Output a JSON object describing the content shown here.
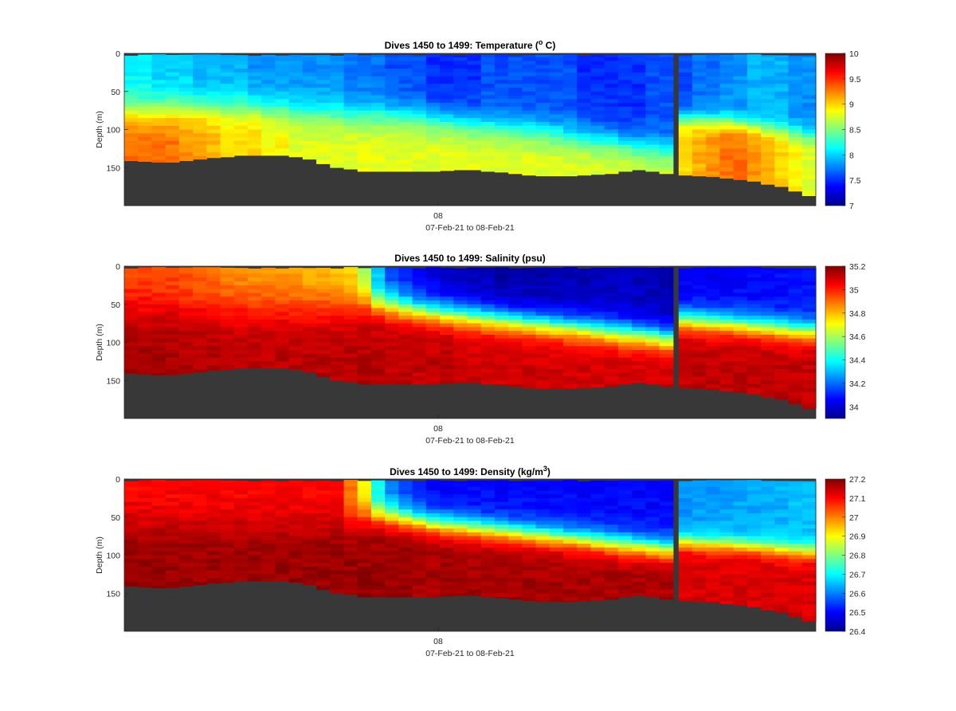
{
  "figure": {
    "background": "#ffffff",
    "bathymetry_color": "#383838"
  },
  "chart_data": [
    {
      "type": "heatmap",
      "title": "Dives 1450 to 1499: Temperature (",
      "title_sup": "o",
      "title_suffix": " C)",
      "ylabel": "Depth (m)",
      "xlabel": "07-Feb-21 to 08-Feb-21",
      "x_ticks": [
        "08"
      ],
      "y_ticks": [
        0,
        50,
        100,
        150
      ],
      "ylim": [
        0,
        200
      ],
      "y_reversed": true,
      "colormap": "jet",
      "clim": [
        7,
        10
      ],
      "colorbar_ticks": [
        "10",
        "9.5",
        "9",
        "8.5",
        "8",
        "7.5",
        "7"
      ],
      "colorbar_values": [
        10,
        9.5,
        9,
        8.5,
        8,
        7.5,
        7
      ],
      "dives": [
        1450,
        1499
      ],
      "bottom_depth_per_dive": [
        141,
        142,
        143,
        143,
        141,
        139,
        137,
        136,
        134,
        134,
        134,
        134,
        136,
        139,
        145,
        150,
        152,
        155,
        155,
        155,
        155,
        155,
        155,
        154,
        153,
        153,
        155,
        156,
        158,
        160,
        161,
        161,
        161,
        160,
        159,
        158,
        155,
        153,
        155,
        158,
        160,
        161,
        162,
        164,
        166,
        168,
        172,
        175,
        181,
        187
      ],
      "profile_mixed_depth": [
        25,
        24,
        22,
        22,
        20,
        18,
        14,
        12,
        10,
        9,
        8,
        8,
        8,
        7,
        6,
        6,
        5,
        5,
        4,
        4,
        3,
        3,
        2,
        2,
        2,
        2,
        2,
        2,
        2,
        2,
        2,
        2,
        2,
        2,
        2,
        2,
        2,
        2,
        2,
        2,
        2,
        2,
        2,
        2,
        2,
        2,
        2,
        2,
        2,
        2
      ],
      "profile_surface_value": [
        8.1,
        8.1,
        8.0,
        8.0,
        8.0,
        7.9,
        7.9,
        7.9,
        7.9,
        7.8,
        7.8,
        7.8,
        7.8,
        7.8,
        7.8,
        7.8,
        7.7,
        7.7,
        7.7,
        7.6,
        7.6,
        7.6,
        7.5,
        7.5,
        7.5,
        7.5,
        7.6,
        7.6,
        7.6,
        7.6,
        7.6,
        7.6,
        7.6,
        7.5,
        7.5,
        7.5,
        7.5,
        7.5,
        7.6,
        7.6,
        7.6,
        7.7,
        7.7,
        7.8,
        7.8,
        7.9,
        7.9,
        7.9,
        7.8,
        7.8
      ],
      "profile_bottom_value": [
        9.3,
        9.3,
        9.3,
        9.3,
        9.2,
        9.2,
        9.1,
        9.0,
        9.0,
        9.0,
        8.9,
        8.9,
        8.8,
        8.8,
        8.8,
        8.8,
        8.8,
        8.8,
        8.8,
        8.8,
        8.8,
        8.8,
        8.8,
        8.8,
        8.8,
        8.8,
        8.8,
        8.8,
        8.8,
        8.8,
        8.8,
        8.8,
        8.8,
        8.8,
        8.8,
        8.8,
        8.8,
        8.8,
        8.8,
        8.8,
        9.0,
        9.1,
        9.2,
        9.3,
        9.3,
        9.2,
        9.1,
        9.0,
        8.9,
        8.8
      ],
      "profile_transition_depth": [
        75,
        75,
        74,
        73,
        72,
        72,
        71,
        70,
        70,
        70,
        72,
        73,
        75,
        77,
        78,
        80,
        80,
        80,
        80,
        80,
        82,
        84,
        86,
        88,
        90,
        92,
        95,
        97,
        99,
        100,
        102,
        105,
        108,
        110,
        113,
        115,
        118,
        122,
        125,
        128,
        85,
        86,
        88,
        90,
        92,
        95,
        98,
        100,
        103,
        108
      ],
      "profile_transition_width": [
        50,
        50,
        50,
        50,
        50,
        50,
        50,
        50,
        50,
        50,
        50,
        50,
        50,
        50,
        50,
        50,
        50,
        50,
        50,
        50,
        50,
        50,
        50,
        50,
        50,
        50,
        50,
        50,
        50,
        50,
        50,
        50,
        50,
        50,
        50,
        50,
        50,
        50,
        50,
        50,
        30,
        30,
        30,
        30,
        30,
        30,
        30,
        30,
        30,
        30
      ]
    },
    {
      "type": "heatmap",
      "title": "Dives 1450 to 1499: Salinity (psu)",
      "title_sup": "",
      "title_suffix": "",
      "ylabel": "Depth (m)",
      "xlabel": "07-Feb-21 to 08-Feb-21",
      "x_ticks": [
        "08"
      ],
      "y_ticks": [
        0,
        50,
        100,
        150
      ],
      "ylim": [
        0,
        200
      ],
      "y_reversed": true,
      "colormap": "jet",
      "clim": [
        33.9,
        35.2
      ],
      "colorbar_ticks": [
        "35.2",
        "35",
        "34.8",
        "34.6",
        "34.4",
        "34.2",
        "34"
      ],
      "colorbar_values": [
        35.2,
        35,
        34.8,
        34.6,
        34.4,
        34.2,
        34
      ],
      "dives": [
        1450,
        1499
      ],
      "bottom_depth_per_dive": [
        141,
        142,
        143,
        143,
        141,
        139,
        137,
        136,
        134,
        134,
        134,
        134,
        136,
        139,
        145,
        150,
        152,
        155,
        155,
        155,
        155,
        155,
        155,
        154,
        153,
        153,
        155,
        156,
        158,
        160,
        161,
        161,
        161,
        160,
        159,
        158,
        155,
        153,
        155,
        158,
        160,
        161,
        162,
        164,
        166,
        168,
        172,
        175,
        181,
        187
      ],
      "profile_mixed_depth": [
        10,
        10,
        10,
        10,
        10,
        10,
        10,
        10,
        10,
        10,
        10,
        10,
        10,
        10,
        10,
        10,
        10,
        10,
        10,
        10,
        10,
        10,
        10,
        10,
        10,
        10,
        10,
        10,
        10,
        10,
        10,
        10,
        10,
        10,
        10,
        10,
        10,
        10,
        10,
        10,
        10,
        10,
        10,
        10,
        10,
        10,
        10,
        10,
        10,
        10
      ],
      "profile_surface_value": [
        34.95,
        34.95,
        34.94,
        34.94,
        34.92,
        34.9,
        34.88,
        34.86,
        34.85,
        34.84,
        34.84,
        34.82,
        34.82,
        34.8,
        34.8,
        34.78,
        34.75,
        34.6,
        34.3,
        34.15,
        34.1,
        34.05,
        34.02,
        34.0,
        33.98,
        33.97,
        33.96,
        33.95,
        33.95,
        33.95,
        33.96,
        33.96,
        33.97,
        33.97,
        33.98,
        33.98,
        33.98,
        33.97,
        33.97,
        33.96,
        34.05,
        34.05,
        34.05,
        34.06,
        34.06,
        34.06,
        34.07,
        34.07,
        34.08,
        34.08
      ],
      "profile_bottom_value": [
        35.15,
        35.15,
        35.15,
        35.15,
        35.14,
        35.14,
        35.14,
        35.14,
        35.13,
        35.13,
        35.13,
        35.13,
        35.13,
        35.13,
        35.13,
        35.13,
        35.13,
        35.13,
        35.13,
        35.12,
        35.12,
        35.12,
        35.12,
        35.12,
        35.1,
        35.1,
        35.1,
        35.1,
        35.1,
        35.1,
        35.1,
        35.1,
        35.1,
        35.1,
        35.1,
        35.1,
        35.1,
        35.1,
        35.1,
        35.1,
        35.12,
        35.12,
        35.12,
        35.12,
        35.12,
        35.12,
        35.12,
        35.12,
        35.12,
        35.12
      ],
      "profile_transition_depth": [
        55,
        55,
        55,
        55,
        55,
        55,
        55,
        55,
        55,
        55,
        55,
        55,
        55,
        55,
        55,
        55,
        52,
        48,
        50,
        52,
        55,
        58,
        60,
        62,
        64,
        66,
        68,
        70,
        72,
        74,
        76,
        78,
        80,
        82,
        84,
        86,
        88,
        90,
        92,
        95,
        70,
        72,
        74,
        75,
        76,
        78,
        80,
        82,
        84,
        85
      ],
      "profile_transition_width": [
        70,
        70,
        70,
        70,
        70,
        70,
        70,
        70,
        70,
        70,
        70,
        70,
        70,
        70,
        70,
        70,
        60,
        50,
        45,
        45,
        45,
        45,
        45,
        45,
        45,
        45,
        45,
        45,
        45,
        45,
        45,
        45,
        45,
        45,
        45,
        45,
        45,
        45,
        45,
        45,
        40,
        40,
        40,
        40,
        40,
        40,
        40,
        40,
        40,
        40
      ]
    },
    {
      "type": "heatmap",
      "title": "Dives 1450 to 1499: Density (kg/m",
      "title_sup": "3",
      "title_suffix": ")",
      "ylabel": "Depth (m)",
      "xlabel": "07-Feb-21 to 08-Feb-21",
      "x_ticks": [
        "08"
      ],
      "y_ticks": [
        0,
        50,
        100,
        150
      ],
      "ylim": [
        0,
        200
      ],
      "y_reversed": true,
      "colormap": "jet",
      "clim": [
        26.4,
        27.2
      ],
      "colorbar_ticks": [
        "27.2",
        "27.1",
        "27",
        "26.9",
        "26.8",
        "26.7",
        "26.6",
        "26.5",
        "26.4"
      ],
      "colorbar_values": [
        27.2,
        27.1,
        27,
        26.9,
        26.8,
        26.7,
        26.6,
        26.5,
        26.4
      ],
      "dives": [
        1450,
        1499
      ],
      "bottom_depth_per_dive": [
        141,
        142,
        143,
        143,
        141,
        139,
        137,
        136,
        134,
        134,
        134,
        134,
        136,
        139,
        145,
        150,
        152,
        155,
        155,
        155,
        155,
        155,
        155,
        154,
        153,
        153,
        155,
        156,
        158,
        160,
        161,
        161,
        161,
        160,
        159,
        158,
        155,
        153,
        155,
        158,
        160,
        161,
        162,
        164,
        166,
        168,
        172,
        175,
        181,
        187
      ],
      "profile_mixed_depth": [
        10,
        10,
        10,
        10,
        10,
        10,
        10,
        10,
        10,
        10,
        10,
        10,
        10,
        10,
        10,
        10,
        10,
        10,
        10,
        10,
        10,
        10,
        10,
        10,
        10,
        10,
        10,
        10,
        10,
        10,
        10,
        10,
        10,
        10,
        10,
        10,
        10,
        10,
        10,
        10,
        10,
        10,
        10,
        10,
        10,
        10,
        10,
        10,
        10,
        10
      ],
      "profile_surface_value": [
        27.1,
        27.1,
        27.1,
        27.1,
        27.1,
        27.1,
        27.1,
        27.1,
        27.1,
        27.1,
        27.1,
        27.1,
        27.1,
        27.1,
        27.1,
        27.1,
        27.0,
        26.9,
        26.7,
        26.6,
        26.55,
        26.52,
        26.5,
        26.5,
        26.5,
        26.5,
        26.5,
        26.5,
        26.5,
        26.5,
        26.5,
        26.5,
        26.5,
        26.5,
        26.5,
        26.5,
        26.5,
        26.5,
        26.5,
        26.5,
        26.62,
        26.62,
        26.62,
        26.63,
        26.63,
        26.63,
        26.64,
        26.64,
        26.65,
        26.65
      ],
      "profile_bottom_value": [
        27.18,
        27.18,
        27.18,
        27.18,
        27.18,
        27.18,
        27.18,
        27.18,
        27.18,
        27.18,
        27.18,
        27.18,
        27.18,
        27.18,
        27.18,
        27.18,
        27.18,
        27.18,
        27.18,
        27.18,
        27.18,
        27.17,
        27.17,
        27.17,
        27.17,
        27.17,
        27.17,
        27.17,
        27.17,
        27.17,
        27.17,
        27.17,
        27.17,
        27.17,
        27.17,
        27.17,
        27.17,
        27.17,
        27.17,
        27.17,
        27.13,
        27.13,
        27.13,
        27.13,
        27.13,
        27.13,
        27.13,
        27.13,
        27.13,
        27.13
      ],
      "profile_transition_depth": [
        60,
        60,
        60,
        60,
        60,
        60,
        60,
        60,
        60,
        60,
        60,
        60,
        60,
        60,
        60,
        60,
        55,
        50,
        48,
        50,
        52,
        55,
        58,
        60,
        62,
        64,
        66,
        68,
        70,
        72,
        74,
        76,
        78,
        80,
        82,
        84,
        86,
        88,
        90,
        92,
        82,
        84,
        85,
        86,
        87,
        88,
        90,
        92,
        94,
        95
      ],
      "profile_transition_width": [
        60,
        60,
        60,
        60,
        60,
        60,
        60,
        60,
        60,
        60,
        60,
        60,
        60,
        60,
        60,
        60,
        50,
        45,
        40,
        40,
        40,
        40,
        40,
        40,
        40,
        40,
        40,
        40,
        40,
        40,
        40,
        40,
        40,
        40,
        40,
        40,
        40,
        40,
        40,
        40,
        30,
        30,
        30,
        30,
        30,
        30,
        30,
        30,
        30,
        30
      ]
    }
  ]
}
